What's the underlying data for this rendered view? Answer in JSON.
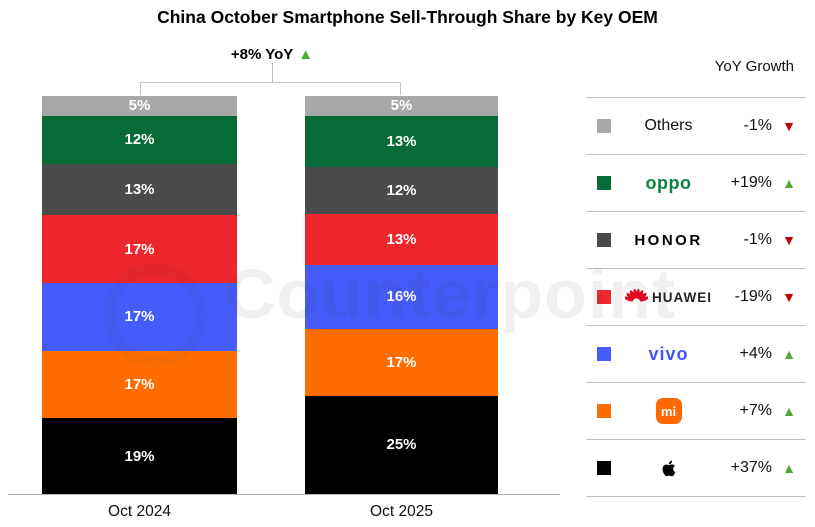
{
  "title": "China October Smartphone Sell-Through Share by Key OEM",
  "watermark": "Counterpoint",
  "annotation": {
    "label": "+8% YoY",
    "direction": "up"
  },
  "legend_header": "YoY Growth",
  "colors": {
    "up_triangle": "#52a832",
    "down_triangle": "#c00000",
    "axis_line": "#b3b3b3",
    "divider": "#c0c0c0",
    "bracket": "#c2c2c2"
  },
  "chart_data": {
    "type": "bar",
    "stacked": true,
    "unit": "%",
    "title": "China October Smartphone Sell-Through Share by Key OEM",
    "categories": [
      "Oct 2024",
      "Oct 2025"
    ],
    "total_yoy_growth": "+8% YoY",
    "legend_position": "right",
    "series": [
      {
        "name": "Others",
        "logo": "text",
        "logo_text": "Others",
        "color": "#a8a8a8",
        "values": [
          5,
          5
        ],
        "yoy": "-1%",
        "yoy_direction": "down"
      },
      {
        "name": "OPPO",
        "logo": "oppo",
        "logo_text": "oppo",
        "color": "#076b38",
        "values": [
          12,
          13
        ],
        "yoy": "+19%",
        "yoy_direction": "up"
      },
      {
        "name": "HONOR",
        "logo": "honor",
        "logo_text": "HONOR",
        "color": "#4b4b4b",
        "values": [
          13,
          12
        ],
        "yoy": "-1%",
        "yoy_direction": "down"
      },
      {
        "name": "HUAWEI",
        "logo": "huawei",
        "logo_text": "HUAWEI",
        "color": "#ee262d",
        "values": [
          17,
          13
        ],
        "yoy": "-19%",
        "yoy_direction": "down"
      },
      {
        "name": "vivo",
        "logo": "vivo",
        "logo_text": "vivo",
        "color": "#455cfa",
        "values": [
          17,
          16
        ],
        "yoy": "+4%",
        "yoy_direction": "up"
      },
      {
        "name": "Xiaomi",
        "logo": "xiaomi",
        "logo_text": "mi",
        "color": "#ff6d00",
        "values": [
          17,
          17
        ],
        "yoy": "+7%",
        "yoy_direction": "up"
      },
      {
        "name": "Apple",
        "logo": "apple",
        "logo_text": "",
        "color": "#000000",
        "values": [
          19,
          25
        ],
        "yoy": "+37%",
        "yoy_direction": "up"
      }
    ]
  }
}
